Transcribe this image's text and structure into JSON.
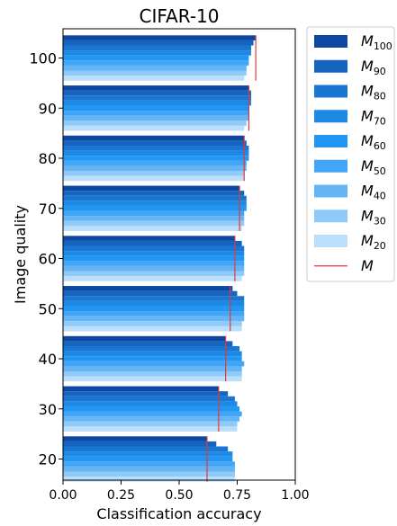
{
  "chart_data": {
    "type": "bar",
    "orientation": "horizontal",
    "title": "CIFAR-10",
    "xlabel": "Classification accuracy",
    "ylabel": "Image quality",
    "xlim": [
      0.0,
      1.0
    ],
    "xticks": [
      "0.00",
      "0.25",
      "0.50",
      "0.75",
      "1.00"
    ],
    "categories": [
      "20",
      "30",
      "40",
      "50",
      "60",
      "70",
      "80",
      "90",
      "100"
    ],
    "series": [
      {
        "name": "M",
        "sub": "100",
        "color": "#0d47a1",
        "values": [
          0.62,
          0.67,
          0.7,
          0.73,
          0.74,
          0.76,
          0.78,
          0.8,
          0.83
        ]
      },
      {
        "name": "M",
        "sub": "90",
        "color": "#1565c0",
        "values": [
          0.66,
          0.71,
          0.73,
          0.75,
          0.77,
          0.78,
          0.79,
          0.81,
          0.82
        ]
      },
      {
        "name": "M",
        "sub": "80",
        "color": "#1976d2",
        "values": [
          0.71,
          0.74,
          0.76,
          0.78,
          0.78,
          0.79,
          0.8,
          0.81,
          0.81
        ]
      },
      {
        "name": "M",
        "sub": "70",
        "color": "#1e88e5",
        "values": [
          0.73,
          0.75,
          0.77,
          0.78,
          0.78,
          0.79,
          0.8,
          0.81,
          0.81
        ]
      },
      {
        "name": "M",
        "sub": "60",
        "color": "#2196f3",
        "values": [
          0.73,
          0.76,
          0.77,
          0.78,
          0.78,
          0.79,
          0.8,
          0.8,
          0.8
        ]
      },
      {
        "name": "M",
        "sub": "50",
        "color": "#42a5f5",
        "values": [
          0.74,
          0.77,
          0.78,
          0.78,
          0.78,
          0.78,
          0.79,
          0.8,
          0.8
        ]
      },
      {
        "name": "M",
        "sub": "40",
        "color": "#64b5f6",
        "values": [
          0.74,
          0.76,
          0.77,
          0.78,
          0.78,
          0.78,
          0.79,
          0.8,
          0.79
        ]
      },
      {
        "name": "M",
        "sub": "30",
        "color": "#90caf9",
        "values": [
          0.74,
          0.75,
          0.77,
          0.77,
          0.78,
          0.78,
          0.78,
          0.79,
          0.79
        ]
      },
      {
        "name": "M",
        "sub": "20",
        "color": "#bbdefb",
        "values": [
          0.74,
          0.75,
          0.77,
          0.77,
          0.77,
          0.77,
          0.78,
          0.78,
          0.78
        ]
      }
    ],
    "reference": {
      "name": "M",
      "color": "#e53935",
      "values": [
        0.62,
        0.67,
        0.7,
        0.72,
        0.74,
        0.76,
        0.78,
        0.8,
        0.83
      ]
    },
    "legend_position": "outside-top-right",
    "grid": false
  }
}
